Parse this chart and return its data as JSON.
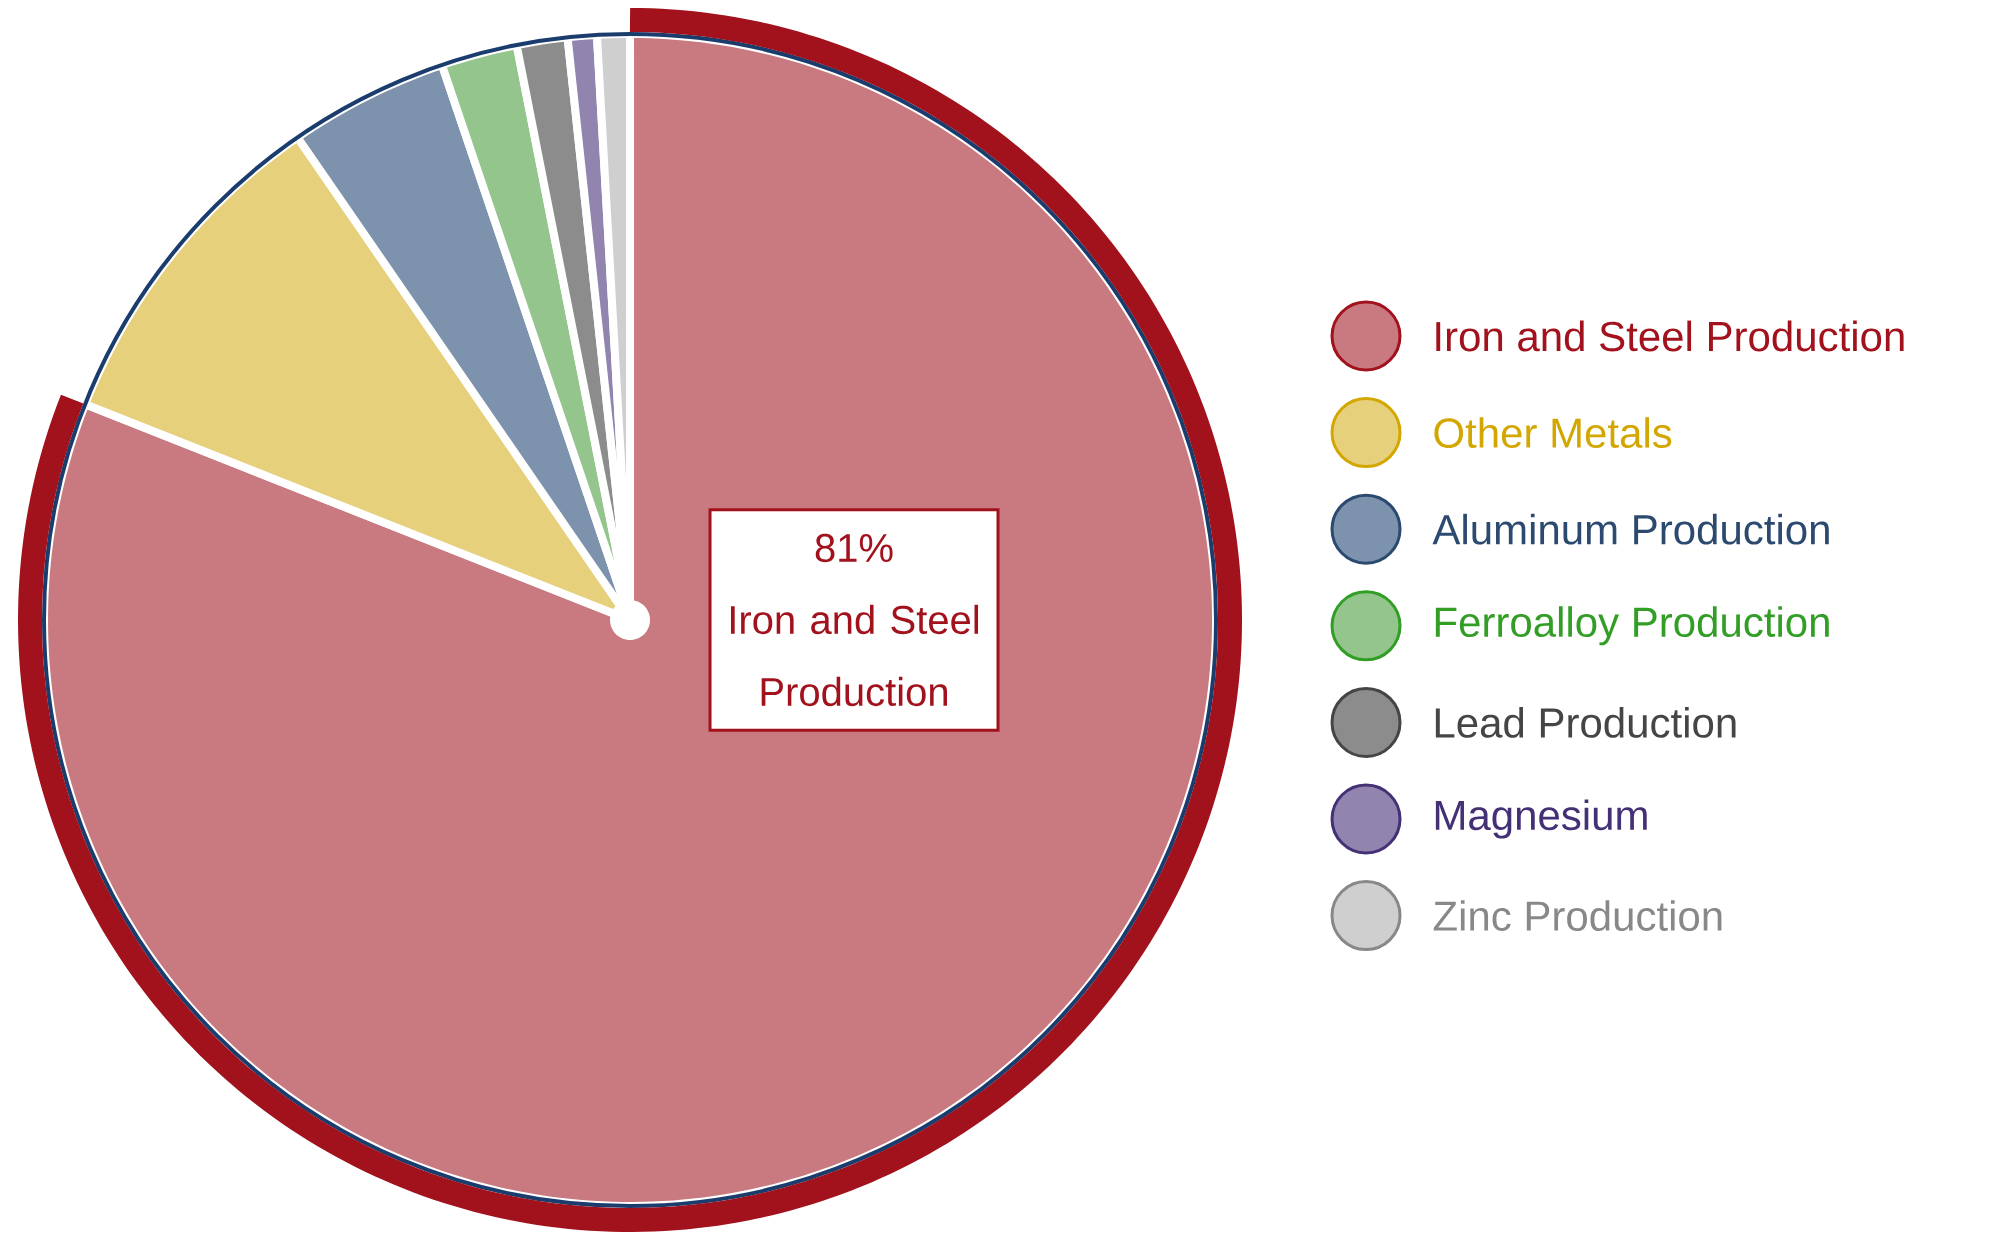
{
  "chart_data": {
    "type": "pie",
    "categories": [
      "Iron and Steel Production",
      "Other Metals",
      "Aluminum Production",
      "Ferroalloy Production",
      "Lead Production",
      "Magnesium",
      "Zinc Production"
    ],
    "values": [
      81,
      9.4,
      4.4,
      2.1,
      1.4,
      0.8,
      0.9
    ],
    "colors": [
      "#c97a80",
      "#e6d07c",
      "#7d92ad",
      "#93c58d",
      "#8c8c8c",
      "#9185b0",
      "#cfcfcf"
    ],
    "value_labels": [
      "81%",
      null,
      null,
      null,
      null,
      null,
      null
    ],
    "legend": "right"
  }
}
